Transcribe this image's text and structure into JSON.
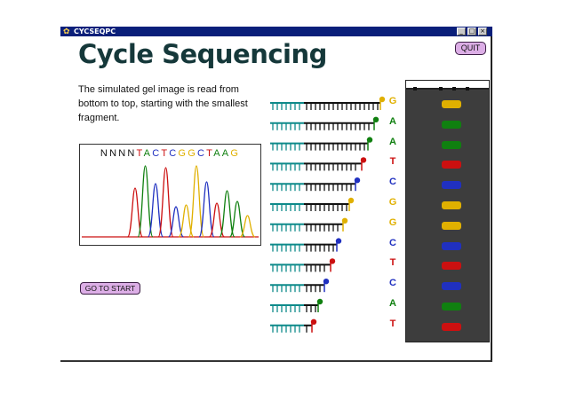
{
  "window": {
    "title": "CYCSEQPC",
    "minimize_glyph": "_",
    "maximize_glyph": "□",
    "close_glyph": "×"
  },
  "heading": "Cycle Sequencing",
  "quit_label": "QUIT",
  "description": "The simulated gel image is read from bottom to top, starting with the smallest fragment.",
  "chromatogram": {
    "sequence": [
      "N",
      "N",
      "N",
      "N",
      "T",
      "A",
      "C",
      "T",
      "C",
      "G",
      "G",
      "C",
      "T",
      "A",
      "A",
      "G"
    ]
  },
  "go_to_start_label": "GO TO START",
  "fragments": [
    {
      "base": "G"
    },
    {
      "base": "A"
    },
    {
      "base": "A"
    },
    {
      "base": "T"
    },
    {
      "base": "C"
    },
    {
      "base": "G"
    },
    {
      "base": "G"
    },
    {
      "base": "C"
    },
    {
      "base": "T"
    },
    {
      "base": "C"
    },
    {
      "base": "A"
    },
    {
      "base": "T"
    }
  ],
  "colors": {
    "G": "#e0b000",
    "A": "#108010",
    "T": "#cc1010",
    "C": "#2030c0",
    "N": "#111111",
    "primer": "#0e8a8a",
    "new_strand": "#111111"
  }
}
